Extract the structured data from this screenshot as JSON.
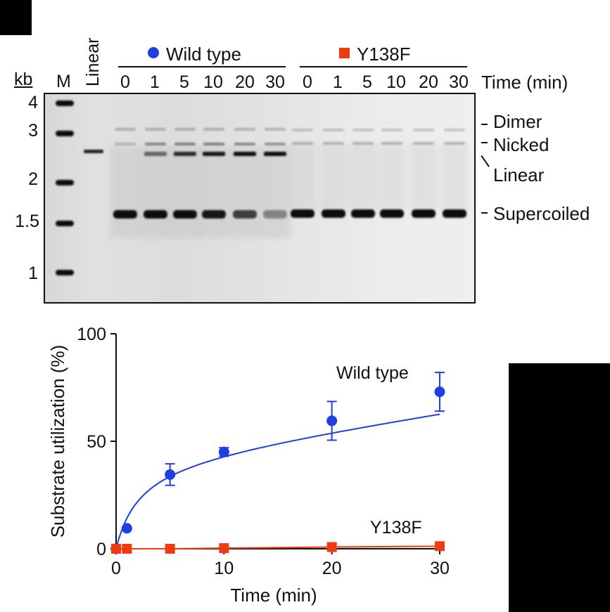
{
  "gel": {
    "kb_label": "kb",
    "marker_label": "M",
    "linear_label": "Linear",
    "groups": [
      {
        "name": "Wild type",
        "symbol": "●",
        "color": "#1f3fe0"
      },
      {
        "name": "Y138F",
        "symbol": "■",
        "color": "#f03a10"
      }
    ],
    "time_label": "Time (min)",
    "wt_times": [
      "0",
      "1",
      "5",
      "10",
      "20",
      "30"
    ],
    "mut_times": [
      "0",
      "1",
      "5",
      "10",
      "20",
      "30"
    ],
    "kb_markers": [
      "4",
      "3",
      "2",
      "1.5",
      "1"
    ],
    "band_labels": [
      "Dimer",
      "Nicked",
      "Linear",
      "Supercoiled"
    ]
  },
  "chart_data": {
    "type": "line",
    "x_ticks": [
      0,
      10,
      20,
      30
    ],
    "y_ticks": [
      0,
      50,
      100
    ],
    "xlabel": "Time (min)",
    "ylabel": "Substrate utilization (%)",
    "xlim": [
      0,
      30
    ],
    "ylim": [
      0,
      100
    ],
    "grid": false,
    "series": [
      {
        "name": "Wild type",
        "color": "#1f3fe0",
        "marker": "circle",
        "x": [
          0,
          1,
          5,
          10,
          20,
          30
        ],
        "y": [
          0,
          9.5,
          34.5,
          45,
          59.5,
          73
        ],
        "err": [
          0,
          0,
          5,
          2,
          9,
          9
        ]
      },
      {
        "name": "Y138F",
        "color": "#f03a10",
        "marker": "square",
        "x": [
          0,
          1,
          5,
          10,
          20,
          30
        ],
        "y": [
          0,
          0,
          0,
          0.3,
          0.8,
          1.2
        ],
        "err": [
          0,
          0,
          0,
          0,
          0,
          0
        ]
      }
    ]
  }
}
